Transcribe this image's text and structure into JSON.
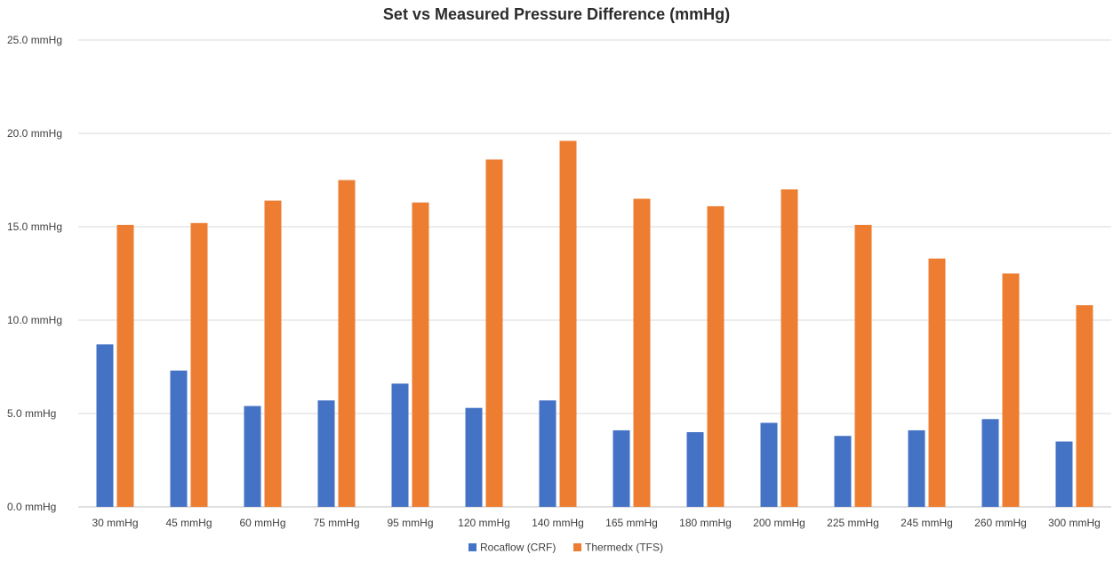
{
  "chart_data": {
    "type": "bar",
    "title": "Set vs Measured Pressure Difference (mmHg)",
    "xlabel": "",
    "ylabel": "",
    "ylim": [
      0,
      25
    ],
    "yticks": [
      "0.0 mmHg",
      "5.0 mmHg",
      "10.0 mmHg",
      "15.0 mmHg",
      "20.0 mmHg",
      "25.0 mmHg"
    ],
    "ytick_values": [
      0,
      5,
      10,
      15,
      20,
      25
    ],
    "categories": [
      "30 mmHg",
      "45 mmHg",
      "60 mmHg",
      "75 mmHg",
      "95 mmHg",
      "120 mmHg",
      "140 mmHg",
      "165 mmHg",
      "180 mmHg",
      "200 mmHg",
      "225 mmHg",
      "245 mmHg",
      "260 mmHg",
      "300 mmHg"
    ],
    "series": [
      {
        "name": "Rocaflow (CRF)",
        "color": "#4472c4",
        "values": [
          8.7,
          7.3,
          5.4,
          5.7,
          6.6,
          5.3,
          5.7,
          4.1,
          4.0,
          4.5,
          3.8,
          4.1,
          4.7,
          3.5
        ]
      },
      {
        "name": "Thermedx (TFS)",
        "color": "#ed7d31",
        "values": [
          15.1,
          15.2,
          16.4,
          17.5,
          16.3,
          18.6,
          19.6,
          16.5,
          16.1,
          17.0,
          15.1,
          13.3,
          12.5,
          10.8
        ]
      }
    ],
    "grid": true,
    "legend": "bottom-center"
  }
}
